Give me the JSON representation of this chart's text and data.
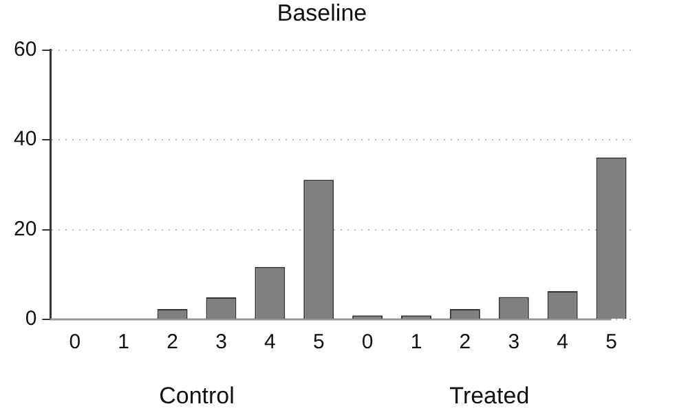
{
  "chart_data": {
    "type": "bar",
    "title": "Baseline",
    "categories": [
      "0",
      "1",
      "2",
      "3",
      "4",
      "5",
      "0",
      "1",
      "2",
      "3",
      "4",
      "5"
    ],
    "series": [
      {
        "name": "Control",
        "color": "#808080",
        "values": [
          0,
          0,
          2.3,
          4.9,
          11.7,
          31.1,
          null,
          null,
          null,
          null,
          null,
          null
        ]
      },
      {
        "name": "Treated",
        "color": "#808080",
        "values": [
          null,
          null,
          null,
          null,
          null,
          null,
          0.9,
          0.9,
          2.3,
          5,
          6.3,
          36.1
        ]
      }
    ],
    "ylim": [
      0,
      60
    ],
    "yticks": [
      0,
      20,
      40,
      60
    ],
    "grid": "y",
    "legend": false
  }
}
